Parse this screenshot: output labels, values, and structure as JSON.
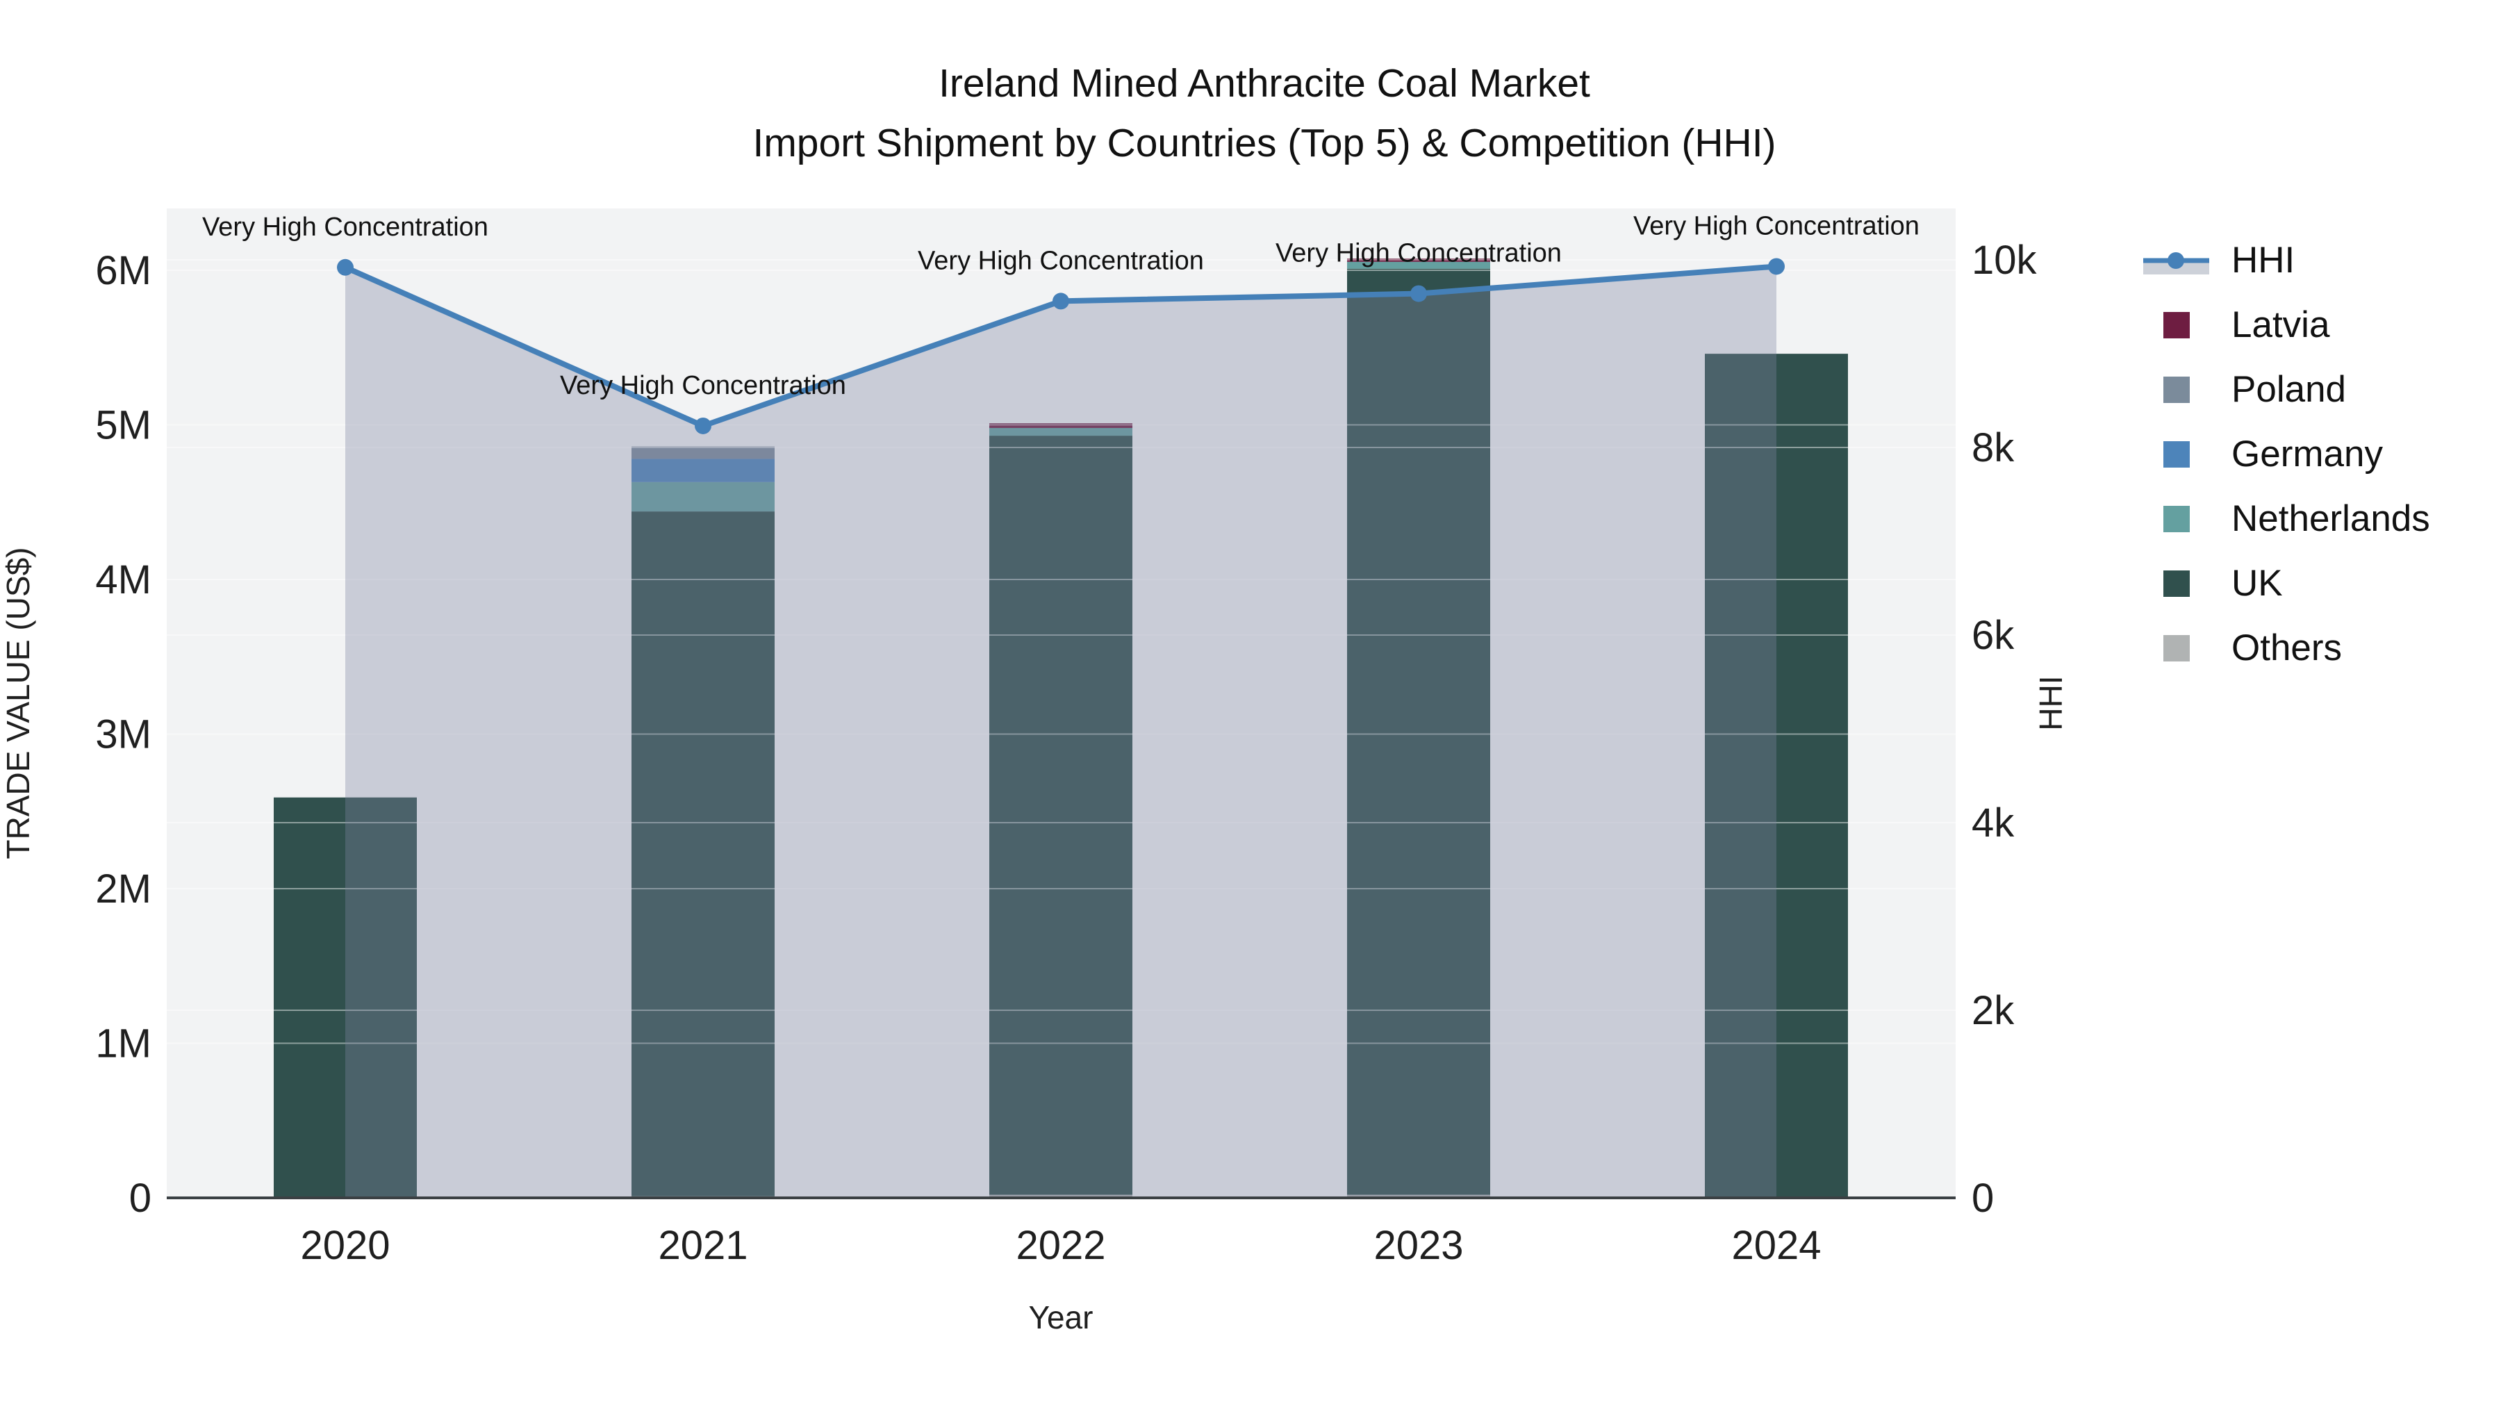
{
  "title": {
    "line1": "Ireland Mined Anthracite Coal Market",
    "line2": "Import Shipment by Countries (Top 5) & Competition (HHI)"
  },
  "axes": {
    "x": {
      "label": "Year",
      "categories": [
        "2020",
        "2021",
        "2022",
        "2023",
        "2024"
      ]
    },
    "left": {
      "label": "TRADE VALUE (US$)",
      "ticks": [
        {
          "value": 0,
          "label": "0"
        },
        {
          "value": 1000000,
          "label": "1M"
        },
        {
          "value": 2000000,
          "label": "2M"
        },
        {
          "value": 3000000,
          "label": "3M"
        },
        {
          "value": 4000000,
          "label": "4M"
        },
        {
          "value": 5000000,
          "label": "5M"
        },
        {
          "value": 6000000,
          "label": "6M"
        }
      ],
      "range": [
        0,
        6400000
      ]
    },
    "right": {
      "label": "HHI",
      "ticks": [
        {
          "value": 0,
          "label": "0"
        },
        {
          "value": 2000,
          "label": "2k"
        },
        {
          "value": 4000,
          "label": "4k"
        },
        {
          "value": 6000,
          "label": "6k"
        },
        {
          "value": 8000,
          "label": "8k"
        },
        {
          "value": 10000,
          "label": "10k"
        }
      ],
      "range": [
        0,
        10550
      ]
    }
  },
  "chart_data": {
    "type": "bar+line",
    "categories": [
      "2020",
      "2021",
      "2022",
      "2023",
      "2024"
    ],
    "series": [
      {
        "name": "Latvia",
        "color": "#6E1D41",
        "values": [
          0,
          0,
          30000,
          20000,
          0
        ]
      },
      {
        "name": "Poland",
        "color": "#7B8B9B",
        "values": [
          0,
          80000,
          0,
          0,
          0
        ]
      },
      {
        "name": "Germany",
        "color": "#4D84BA",
        "values": [
          0,
          150000,
          0,
          0,
          0
        ]
      },
      {
        "name": "Netherlands",
        "color": "#64A0A0",
        "values": [
          0,
          190000,
          50000,
          45000,
          0
        ]
      },
      {
        "name": "UK",
        "color": "#30504D",
        "values": [
          2590000,
          4430000,
          4910000,
          5990000,
          5460000
        ]
      },
      {
        "name": "Others",
        "color": "#B0B3B3",
        "values": [
          0,
          10000,
          20000,
          20000,
          0
        ]
      }
    ],
    "line_series": {
      "name": "HHI",
      "color": "#4580B8",
      "fill_color": "rgba(125,133,160,0.35)",
      "legend_band_color": "#CDD1D9",
      "values": [
        9920,
        8230,
        9560,
        9640,
        9930
      ]
    },
    "annotations": [
      "Very High Concentration",
      "Very High Concentration",
      "Very High Concentration",
      "Very High Concentration",
      "Very High Concentration"
    ],
    "title": "Ireland Mined Anthracite Coal Market Import Shipment by Countries (Top 5) & Competition (HHI)",
    "xlabel": "Year",
    "ylabel_left": "TRADE VALUE (US$)",
    "ylabel_right": "HHI",
    "legend_position": "right",
    "grid": true
  },
  "colors": {
    "plot_bg": "#F2F3F4",
    "grid": "rgba(255,255,255,0.45)",
    "baseline": "#3B4043",
    "text": "#1F1F1F"
  }
}
